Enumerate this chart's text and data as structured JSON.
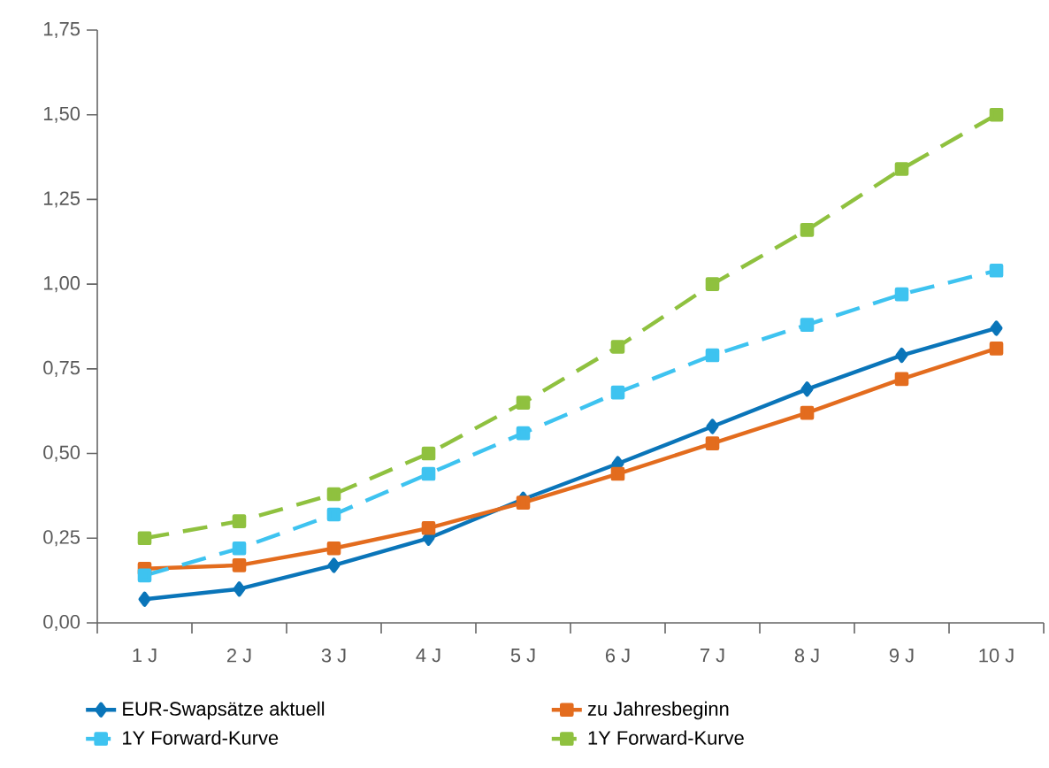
{
  "chart_data": {
    "type": "line",
    "categories": [
      "1 J",
      "2 J",
      "3 J",
      "4 J",
      "5 J",
      "6 J",
      "7 J",
      "8 J",
      "9 J",
      "10 J"
    ],
    "ylim": [
      0,
      1.75
    ],
    "yticks": [
      {
        "value": 0,
        "label": "0,00"
      },
      {
        "value": 0.25,
        "label": "0,25"
      },
      {
        "value": 0.5,
        "label": "0,50"
      },
      {
        "value": 0.75,
        "label": "0,75"
      },
      {
        "value": 1.0,
        "label": "1,00"
      },
      {
        "value": 1.25,
        "label": "1,25"
      },
      {
        "value": 1.5,
        "label": "1,50"
      },
      {
        "value": 1.75,
        "label": "1,75"
      }
    ],
    "grid": false,
    "legend": "bottom",
    "series": [
      {
        "name": "EUR-Swapsätze aktuell",
        "color": "#0a75b9",
        "marker": "diamond",
        "line_style": "solid",
        "values": [
          0.07,
          0.1,
          0.17,
          0.25,
          0.365,
          0.47,
          0.58,
          0.69,
          0.79,
          0.87
        ]
      },
      {
        "name": "zu Jahresbeginn",
        "color": "#e36c1e",
        "marker": "square",
        "line_style": "solid",
        "values": [
          0.16,
          0.17,
          0.22,
          0.28,
          0.355,
          0.44,
          0.53,
          0.62,
          0.72,
          0.81
        ]
      },
      {
        "name": "1Y Forward-Kurve",
        "color": "#3ec3f0",
        "marker": "square",
        "line_style": "dashed",
        "values": [
          0.14,
          0.22,
          0.32,
          0.44,
          0.56,
          0.68,
          0.79,
          0.88,
          0.97,
          1.04
        ]
      },
      {
        "name": "1Y Forward-Kurve",
        "color": "#8fc13f",
        "marker": "square",
        "line_style": "dashed",
        "values": [
          0.25,
          0.3,
          0.38,
          0.5,
          0.65,
          0.815,
          1.0,
          1.16,
          1.34,
          1.5
        ]
      }
    ]
  }
}
